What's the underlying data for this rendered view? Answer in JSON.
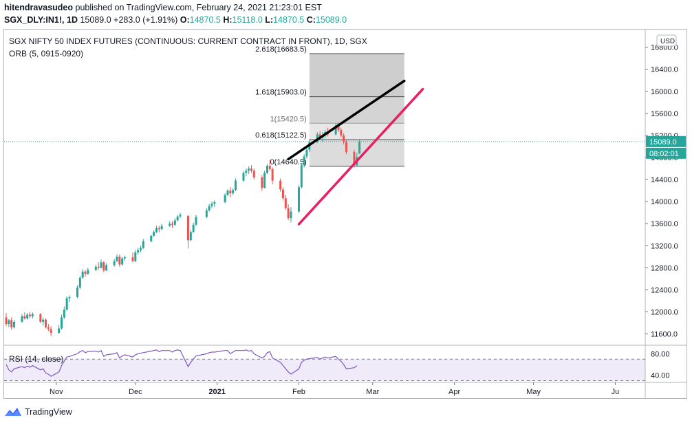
{
  "header": {
    "author": "hitendravasudeo",
    "published": "published on TradingView.com, February 24, 2021 21:23:01 EST",
    "symbol": "SGX_DLY:IN1!, 1D",
    "last": "15089.0",
    "change": "+283.0 (+1.91%)",
    "o_label": "O:",
    "o": "14870.5",
    "h_label": "H:",
    "h": "15118.0",
    "l_label": "L:",
    "l": "14870.5",
    "c_label": "C:",
    "c": "15089.0"
  },
  "footer": {
    "brand": "TradingView",
    "logo_icon": "tradingview-logo-icon"
  },
  "chart_data": {
    "type": "candlestick",
    "title": "SGX NIFTY 50 INDEX FUTURES (CONTINUOUS: CURRENT CONTRACT IN FRONT), 1D, SGX",
    "indicator": "ORB (5, 0915-0920)",
    "currency": "USD",
    "y_ticks": [
      "11600.0",
      "12000.0",
      "12400.0",
      "12800.0",
      "13200.0",
      "13600.0",
      "14000.0",
      "14400.0",
      "14800.0",
      "15200.0",
      "15600.0",
      "16000.0",
      "16400.0",
      "16800.0"
    ],
    "ylim": [
      11420,
      17120
    ],
    "x_ticks": [
      "Nov",
      "Dec",
      "2021",
      "Feb",
      "Mar",
      "Apr",
      "May",
      "Ju"
    ],
    "price_label": "15089.0",
    "countdown_label": "08:02:01",
    "fib_levels": [
      {
        "label": "2.618(16683.5)",
        "value": 16683.5
      },
      {
        "label": "1.618(15903.0)",
        "value": 15903.0
      },
      {
        "label": "1(15420.5)",
        "value": 15420.5
      },
      {
        "label": "0.618(15122.5)",
        "value": 15122.5
      },
      {
        "label": "0(14640.5)",
        "value": 14640.5
      }
    ],
    "trendlines": [
      {
        "name": "resistance",
        "color": "#000000",
        "from": [
          "2021-01-28",
          14770
        ],
        "to": [
          "2021-03-13",
          16190
        ]
      },
      {
        "name": "support",
        "color": "#e91e63",
        "from": [
          "2021-02-01",
          13590
        ],
        "to": [
          "2021-03-20",
          16040
        ]
      }
    ],
    "candles": [
      [
        "2020-10-13",
        11900,
        11980,
        11740,
        11780
      ],
      [
        "2020-10-14",
        11780,
        11870,
        11720,
        11850
      ],
      [
        "2020-10-15",
        11850,
        11900,
        11680,
        11720
      ],
      [
        "2020-10-16",
        11720,
        11850,
        11700,
        11820
      ],
      [
        "2020-10-19",
        11820,
        11960,
        11800,
        11920
      ],
      [
        "2020-10-20",
        11920,
        11990,
        11860,
        11880
      ],
      [
        "2020-10-21",
        11880,
        11980,
        11860,
        11950
      ],
      [
        "2020-10-22",
        11950,
        12000,
        11880,
        11920
      ],
      [
        "2020-10-23",
        11920,
        11990,
        11880,
        11960
      ],
      [
        "2020-10-26",
        11960,
        11980,
        11800,
        11820
      ],
      [
        "2020-10-27",
        11820,
        11900,
        11760,
        11860
      ],
      [
        "2020-10-28",
        11860,
        11880,
        11700,
        11720
      ],
      [
        "2020-10-29",
        11720,
        11780,
        11650,
        11690
      ],
      [
        "2020-10-30",
        11690,
        11740,
        11560,
        11620
      ],
      [
        "2020-11-02",
        11620,
        11760,
        11600,
        11700
      ],
      [
        "2020-11-03",
        11700,
        11950,
        11680,
        11900
      ],
      [
        "2020-11-04",
        11900,
        12100,
        11870,
        12040
      ],
      [
        "2020-11-05",
        12040,
        12280,
        12020,
        12250
      ],
      [
        "2020-11-06",
        12250,
        12300,
        12180,
        12270
      ],
      [
        "2020-11-09",
        12270,
        12480,
        12250,
        12440
      ],
      [
        "2020-11-10",
        12440,
        12650,
        12420,
        12620
      ],
      [
        "2020-11-11",
        12620,
        12780,
        12600,
        12730
      ],
      [
        "2020-11-12",
        12730,
        12760,
        12640,
        12690
      ],
      [
        "2020-11-13",
        12690,
        12800,
        12670,
        12760
      ],
      [
        "2020-11-16",
        12760,
        12850,
        12740,
        12820
      ],
      [
        "2020-11-17",
        12820,
        12900,
        12760,
        12800
      ],
      [
        "2020-11-18",
        12800,
        12950,
        12790,
        12900
      ],
      [
        "2020-11-19",
        12900,
        12920,
        12720,
        12750
      ],
      [
        "2020-11-20",
        12750,
        12880,
        12740,
        12850
      ],
      [
        "2020-11-23",
        12850,
        12960,
        12820,
        12920
      ],
      [
        "2020-11-24",
        12920,
        13040,
        12900,
        13000
      ],
      [
        "2020-11-25",
        13000,
        13040,
        12820,
        12860
      ],
      [
        "2020-11-26",
        12860,
        13000,
        12840,
        12970
      ],
      [
        "2020-11-27",
        12970,
        13020,
        12930,
        12990
      ],
      [
        "2020-11-30",
        12990,
        13080,
        12900,
        12920
      ],
      [
        "2020-12-01",
        12920,
        13120,
        12900,
        13080
      ],
      [
        "2020-12-02",
        13080,
        13160,
        13040,
        13120
      ],
      [
        "2020-12-03",
        13120,
        13200,
        13080,
        13160
      ],
      [
        "2020-12-04",
        13160,
        13320,
        13140,
        13280
      ],
      [
        "2020-12-07",
        13280,
        13400,
        13260,
        13380
      ],
      [
        "2020-12-08",
        13380,
        13480,
        13360,
        13450
      ],
      [
        "2020-12-09",
        13450,
        13560,
        13430,
        13520
      ],
      [
        "2020-12-10",
        13520,
        13560,
        13440,
        13500
      ],
      [
        "2020-12-11",
        13500,
        13600,
        13480,
        13560
      ],
      [
        "2020-12-14",
        13560,
        13640,
        13540,
        13600
      ],
      [
        "2020-12-15",
        13600,
        13640,
        13520,
        13580
      ],
      [
        "2020-12-16",
        13580,
        13700,
        13560,
        13660
      ],
      [
        "2020-12-17",
        13660,
        13760,
        13640,
        13730
      ],
      [
        "2020-12-18",
        13730,
        13800,
        13700,
        13760
      ],
      [
        "2020-12-21",
        13740,
        13760,
        13150,
        13300
      ],
      [
        "2020-12-22",
        13300,
        13480,
        13280,
        13450
      ],
      [
        "2020-12-23",
        13450,
        13620,
        13430,
        13580
      ],
      [
        "2020-12-24",
        13580,
        13760,
        13560,
        13720
      ],
      [
        "2020-12-28",
        13720,
        13880,
        13700,
        13840
      ],
      [
        "2020-12-29",
        13840,
        13960,
        13820,
        13920
      ],
      [
        "2020-12-30",
        13920,
        14000,
        13880,
        13960
      ],
      [
        "2020-12-31",
        13960,
        14020,
        13900,
        13990
      ],
      [
        "2021-01-04",
        13990,
        14150,
        13970,
        14120
      ],
      [
        "2021-01-05",
        14120,
        14220,
        14100,
        14200
      ],
      [
        "2021-01-06",
        14200,
        14260,
        14080,
        14150
      ],
      [
        "2021-01-07",
        14150,
        14240,
        14120,
        14210
      ],
      [
        "2021-01-08",
        14210,
        14420,
        14190,
        14380
      ],
      [
        "2021-01-11",
        14380,
        14560,
        14360,
        14520
      ],
      [
        "2021-01-12",
        14520,
        14600,
        14460,
        14560
      ],
      [
        "2021-01-13",
        14560,
        14640,
        14500,
        14600
      ],
      [
        "2021-01-14",
        14600,
        14660,
        14520,
        14560
      ],
      [
        "2021-01-15",
        14560,
        14600,
        14400,
        14440
      ],
      [
        "2021-01-18",
        14440,
        14480,
        14200,
        14250
      ],
      [
        "2021-01-19",
        14250,
        14560,
        14240,
        14520
      ],
      [
        "2021-01-20",
        14520,
        14680,
        14500,
        14650
      ],
      [
        "2021-01-21",
        14650,
        14760,
        14560,
        14590
      ],
      [
        "2021-01-22",
        14590,
        14620,
        14320,
        14380
      ],
      [
        "2021-01-25",
        14380,
        14420,
        14180,
        14220
      ],
      [
        "2021-01-26",
        14220,
        14260,
        14020,
        14060
      ],
      [
        "2021-01-27",
        14060,
        14120,
        13850,
        13880
      ],
      [
        "2021-01-28",
        13880,
        13950,
        13660,
        13700
      ],
      [
        "2021-01-29",
        13700,
        13900,
        13620,
        13820
      ],
      [
        "2021-02-01",
        13820,
        14300,
        13800,
        14260
      ],
      [
        "2021-02-02",
        14260,
        14700,
        14240,
        14660
      ],
      [
        "2021-02-03",
        14660,
        14860,
        14620,
        14820
      ],
      [
        "2021-02-04",
        14820,
        14980,
        14780,
        14940
      ],
      [
        "2021-02-05",
        14940,
        15120,
        14900,
        15080
      ],
      [
        "2021-02-08",
        15080,
        15260,
        15060,
        15220
      ],
      [
        "2021-02-09",
        15220,
        15280,
        15120,
        15160
      ],
      [
        "2021-02-10",
        15160,
        15260,
        15080,
        15200
      ],
      [
        "2021-02-11",
        15200,
        15300,
        15150,
        15260
      ],
      [
        "2021-02-12",
        15260,
        15340,
        15180,
        15220
      ],
      [
        "2021-02-15",
        15220,
        15420,
        15200,
        15380
      ],
      [
        "2021-02-16",
        15380,
        15440,
        15260,
        15300
      ],
      [
        "2021-02-17",
        15300,
        15340,
        15160,
        15200
      ],
      [
        "2021-02-18",
        15200,
        15240,
        15040,
        15080
      ],
      [
        "2021-02-19",
        15080,
        15120,
        14860,
        14900
      ],
      [
        "2021-02-22",
        14900,
        14940,
        14620,
        14660
      ],
      [
        "2021-02-23",
        14660,
        14880,
        14640,
        14806
      ],
      [
        "2021-02-24",
        14870.5,
        15118,
        14870.5,
        15089
      ]
    ],
    "rsi": {
      "label": "RSI (14, close)",
      "y_ticks": [
        "80.00",
        "40.00"
      ],
      "ylim": [
        28,
        92
      ],
      "values": [
        60,
        50,
        46,
        52,
        56,
        54,
        57,
        55,
        58,
        50,
        52,
        44,
        42,
        38,
        46,
        58,
        66,
        74,
        75,
        80,
        84,
        86,
        82,
        84,
        85,
        83,
        86,
        75,
        78,
        80,
        82,
        72,
        76,
        78,
        74,
        78,
        80,
        81,
        82,
        85,
        86,
        87,
        84,
        86,
        86,
        83,
        86,
        87,
        86,
        56,
        64,
        70,
        76,
        80,
        82,
        83,
        83,
        86,
        86,
        80,
        83,
        86,
        86,
        87,
        85,
        86,
        80,
        72,
        75,
        82,
        84,
        72,
        64,
        58,
        52,
        46,
        42,
        52,
        64,
        68,
        70,
        71,
        73,
        70,
        72,
        74,
        72,
        75,
        70,
        66,
        60,
        52,
        54,
        58
      ]
    }
  }
}
